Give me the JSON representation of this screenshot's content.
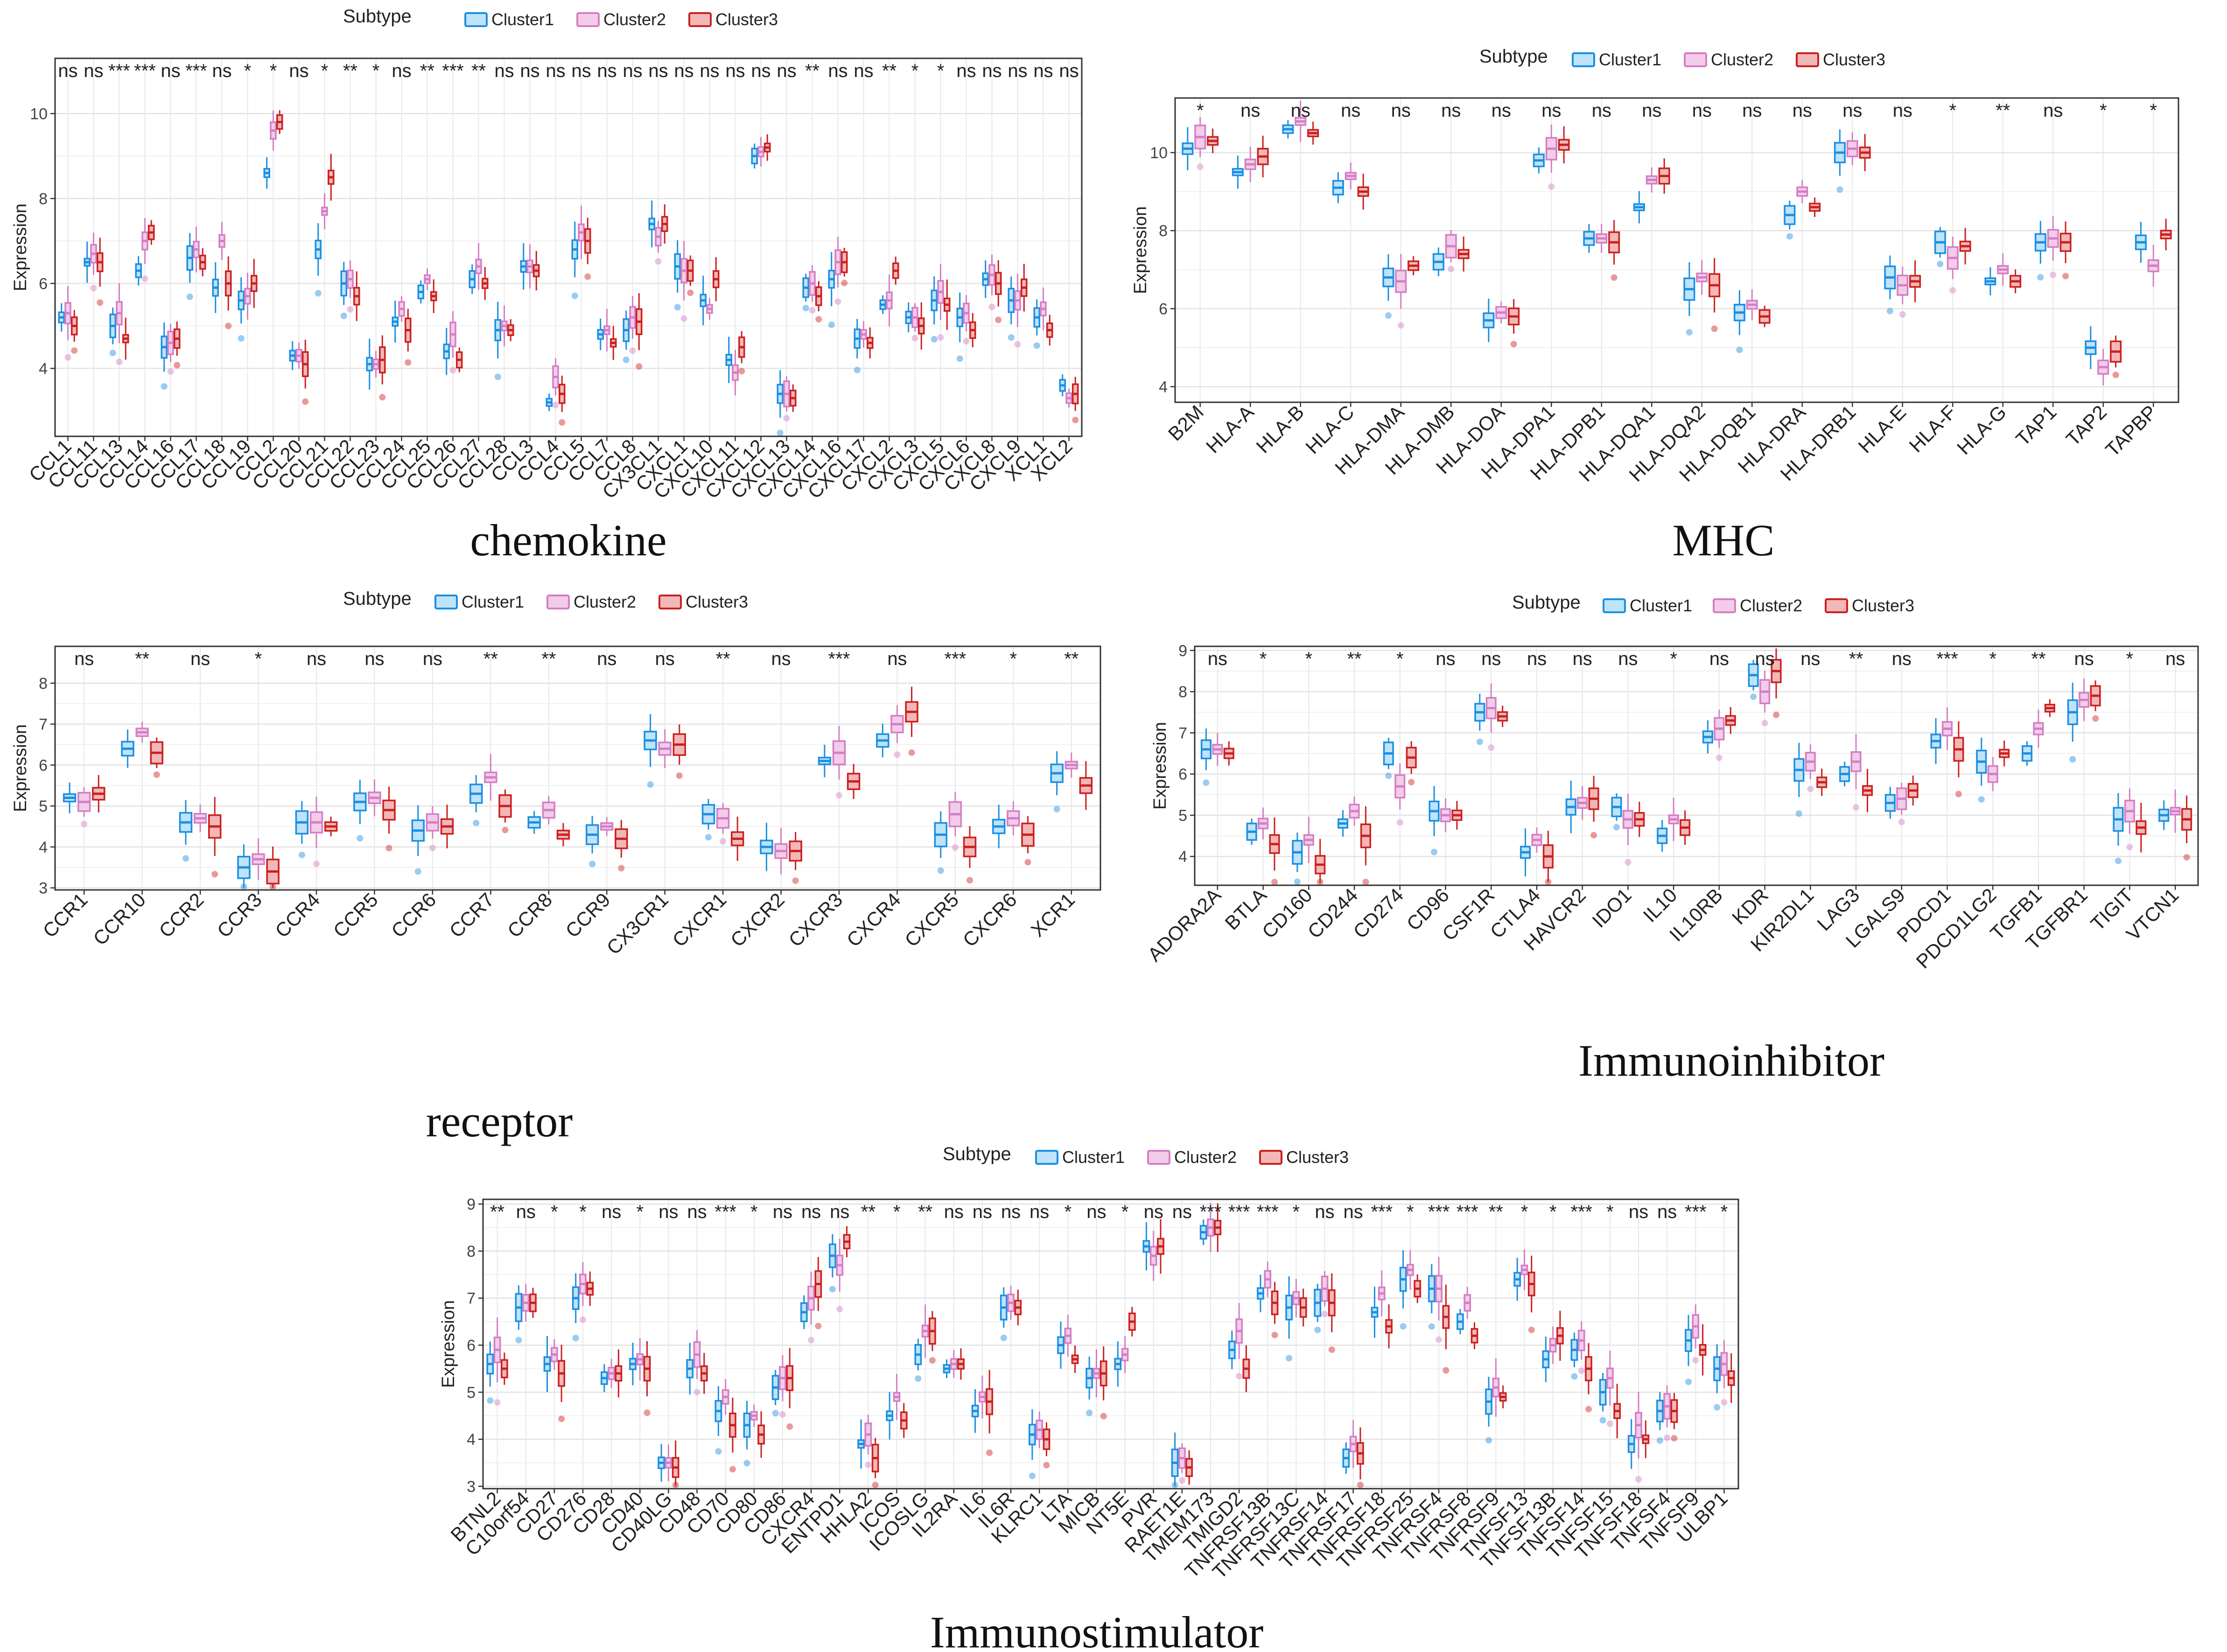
{
  "series_names": [
    "Cluster1",
    "Cluster2",
    "Cluster3"
  ],
  "colors": {
    "Cluster1": {
      "stroke": "#1a8fe3",
      "fill": "#bfe3f9"
    },
    "Cluster2": {
      "stroke": "#d37fc4",
      "fill": "#f3cce9"
    },
    "Cluster3": {
      "stroke": "#cc1f1f",
      "fill": "#f2b8b8"
    }
  },
  "chart_data": [
    {
      "type": "box",
      "title": "chemokine",
      "ylabel": "Expression",
      "legend_title": "Subtype",
      "ylim": [
        2.4,
        11.3
      ],
      "yticks": [
        4,
        6,
        8,
        10
      ],
      "categories": [
        "CCL1",
        "CCL11",
        "CCL13",
        "CCL14",
        "CCL16",
        "CCL17",
        "CCL18",
        "CCL19",
        "CCL2",
        "CCL20",
        "CCL21",
        "CCL22",
        "CCL23",
        "CCL24",
        "CCL25",
        "CCL26",
        "CCL27",
        "CCL28",
        "CCL3",
        "CCL4",
        "CCL5",
        "CCL7",
        "CCL8",
        "CX3CL1",
        "CXCL1",
        "CXCL10",
        "CXCL11",
        "CXCL12",
        "CXCL13",
        "CXCL14",
        "CXCL16",
        "CXCL17",
        "CXCL2",
        "CXCL3",
        "CXCL5",
        "CXCL6",
        "CXCL8",
        "CXCL9",
        "XCL1",
        "XCL2"
      ],
      "significance": [
        "ns",
        "ns",
        "***",
        "***",
        "ns",
        "***",
        "ns",
        "*",
        "*",
        "ns",
        "*",
        "**",
        "*",
        "ns",
        "**",
        "***",
        "**",
        "ns",
        "ns",
        "ns",
        "ns",
        "ns",
        "ns",
        "ns",
        "ns",
        "ns",
        "ns",
        "ns",
        "ns",
        "**",
        "ns",
        "ns",
        "**",
        "*",
        "*",
        "ns",
        "ns",
        "ns",
        "ns",
        "ns"
      ],
      "medians": [
        [
          5.2,
          6.5,
          5.0,
          6.3,
          4.5,
          6.6,
          5.9,
          5.6,
          8.6,
          4.3,
          6.8,
          6.0,
          4.1,
          5.1,
          5.8,
          4.4,
          6.1,
          4.9,
          6.4,
          3.2,
          6.8,
          4.8,
          4.9,
          7.4,
          6.4,
          5.6,
          4.2,
          9.0,
          3.4,
          5.9,
          6.1,
          4.7,
          5.5,
          5.2,
          5.6,
          5.2,
          6.1,
          5.6,
          5.2,
          3.6
        ],
        [
          5.3,
          6.7,
          5.3,
          7.0,
          4.6,
          6.8,
          7.0,
          5.7,
          9.6,
          4.3,
          7.7,
          6.1,
          4.1,
          5.4,
          6.1,
          4.8,
          6.4,
          5.0,
          6.4,
          3.8,
          7.2,
          4.9,
          5.2,
          7.1,
          6.3,
          5.4,
          3.9,
          9.1,
          3.4,
          6.0,
          6.5,
          4.8,
          5.6,
          5.2,
          5.8,
          5.3,
          6.2,
          5.6,
          5.4,
          3.3
        ],
        [
          5.0,
          6.5,
          4.7,
          7.2,
          4.7,
          6.5,
          6.0,
          6.0,
          9.8,
          4.1,
          8.5,
          5.7,
          4.2,
          4.9,
          5.7,
          4.2,
          6.0,
          4.9,
          6.3,
          3.4,
          7.0,
          4.6,
          5.1,
          7.4,
          6.3,
          6.1,
          4.5,
          9.2,
          3.3,
          5.7,
          6.5,
          4.6,
          6.3,
          5.0,
          5.5,
          4.9,
          6.0,
          5.9,
          4.9,
          3.4
        ]
      ]
    },
    {
      "type": "box",
      "title": "MHC",
      "ylabel": "Expression",
      "legend_title": "Subtype",
      "ylim": [
        3.6,
        11.4
      ],
      "yticks": [
        4,
        6,
        8,
        10
      ],
      "categories": [
        "B2M",
        "HLA-A",
        "HLA-B",
        "HLA-C",
        "HLA-DMA",
        "HLA-DMB",
        "HLA-DOA",
        "HLA-DPA1",
        "HLA-DPB1",
        "HLA-DQA1",
        "HLA-DQA2",
        "HLA-DQB1",
        "HLA-DRA",
        "HLA-DRB1",
        "HLA-E",
        "HLA-F",
        "HLA-G",
        "TAP1",
        "TAP2",
        "TAPBP"
      ],
      "significance": [
        "*",
        "ns",
        "ns",
        "ns",
        "ns",
        "ns",
        "ns",
        "ns",
        "ns",
        "ns",
        "ns",
        "ns",
        "ns",
        "ns",
        "ns",
        "*",
        "**",
        "ns",
        "*",
        "*"
      ],
      "medians": [
        [
          10.1,
          9.5,
          10.6,
          9.1,
          6.8,
          7.2,
          5.7,
          9.8,
          7.8,
          8.6,
          6.5,
          5.9,
          8.4,
          10.0,
          6.8,
          7.7,
          6.7,
          7.7,
          5.0,
          7.7
        ],
        [
          10.4,
          9.7,
          10.8,
          9.4,
          6.7,
          7.6,
          5.9,
          10.1,
          7.8,
          9.3,
          6.8,
          6.1,
          9.0,
          10.1,
          6.6,
          7.3,
          7.0,
          7.8,
          4.5,
          7.1
        ],
        [
          10.3,
          9.9,
          10.5,
          9.0,
          7.1,
          7.4,
          5.8,
          10.2,
          7.7,
          9.4,
          6.6,
          5.8,
          8.6,
          10.0,
          6.7,
          7.6,
          6.7,
          7.7,
          4.9,
          7.9
        ]
      ]
    },
    {
      "type": "box",
      "title": "receptor",
      "ylabel": "Expression",
      "legend_title": "Subtype",
      "ylim": [
        2.95,
        8.9
      ],
      "yticks": [
        3,
        4,
        5,
        6,
        7,
        8
      ],
      "categories": [
        "CCR1",
        "CCR10",
        "CCR2",
        "CCR3",
        "CCR4",
        "CCR5",
        "CCR6",
        "CCR7",
        "CCR8",
        "CCR9",
        "CX3CR1",
        "CXCR1",
        "CXCR2",
        "CXCR3",
        "CXCR4",
        "CXCR5",
        "CXCR6",
        "XCR1"
      ],
      "significance": [
        "ns",
        "**",
        "ns",
        "*",
        "ns",
        "ns",
        "ns",
        "**",
        "**",
        "ns",
        "ns",
        "**",
        "ns",
        "***",
        "ns",
        "***",
        "*",
        "**"
      ],
      "medians": [
        [
          5.2,
          6.4,
          4.6,
          3.5,
          4.6,
          5.1,
          4.4,
          5.3,
          4.6,
          4.3,
          6.6,
          4.8,
          4.0,
          6.1,
          6.6,
          4.3,
          4.5,
          5.8
        ],
        [
          5.1,
          6.8,
          4.7,
          3.7,
          4.6,
          5.2,
          4.6,
          5.7,
          4.9,
          4.5,
          6.4,
          4.7,
          3.9,
          6.3,
          7.0,
          4.8,
          4.7,
          6.0
        ],
        [
          5.3,
          6.3,
          4.5,
          3.4,
          4.5,
          4.9,
          4.5,
          5.0,
          4.3,
          4.2,
          6.5,
          4.2,
          3.9,
          5.6,
          7.3,
          4.0,
          4.3,
          5.5
        ]
      ]
    },
    {
      "type": "box",
      "title": "Immunoinhibitor",
      "ylabel": "Expression",
      "legend_title": "Subtype",
      "ylim": [
        3.3,
        9.1
      ],
      "yticks": [
        4,
        5,
        6,
        7,
        8,
        9
      ],
      "categories": [
        "ADORA2A",
        "BTLA",
        "CD160",
        "CD244",
        "CD274",
        "CD96",
        "CSF1R",
        "CTLA4",
        "HAVCR2",
        "IDO1",
        "IL10",
        "IL10RB",
        "KDR",
        "KIR2DL1",
        "LAG3",
        "LGALS9",
        "PDCD1",
        "PDCD1LG2",
        "TGFB1",
        "TGFBR1",
        "TIGIT",
        "VTCN1"
      ],
      "significance": [
        "ns",
        "*",
        "*",
        "**",
        "*",
        "ns",
        "ns",
        "ns",
        "ns",
        "ns",
        "*",
        "ns",
        "ns",
        "ns",
        "**",
        "ns",
        "***",
        "*",
        "**",
        "ns",
        "*",
        "ns"
      ],
      "medians": [
        [
          6.6,
          4.6,
          4.1,
          4.8,
          6.5,
          5.1,
          7.5,
          4.1,
          5.2,
          5.2,
          4.5,
          6.9,
          8.4,
          6.1,
          6.0,
          5.3,
          6.8,
          6.3,
          6.5,
          7.5,
          4.9,
          5.0
        ],
        [
          6.6,
          4.8,
          4.4,
          5.1,
          5.7,
          5.0,
          7.6,
          4.4,
          5.3,
          4.9,
          4.9,
          7.1,
          8.0,
          6.3,
          6.3,
          5.4,
          7.1,
          6.0,
          7.1,
          7.8,
          5.1,
          5.1
        ],
        [
          6.5,
          4.3,
          3.8,
          4.5,
          6.4,
          5.0,
          7.4,
          4.0,
          5.4,
          4.9,
          4.7,
          7.3,
          8.5,
          5.8,
          5.6,
          5.6,
          6.6,
          6.5,
          7.6,
          7.9,
          4.7,
          4.9
        ]
      ]
    },
    {
      "type": "box",
      "title": "Immunostimulator",
      "ylabel": "Expression",
      "legend_title": "Subtype",
      "ylim": [
        2.95,
        9.1
      ],
      "yticks": [
        3,
        4,
        5,
        6,
        7,
        8,
        9
      ],
      "categories": [
        "BTNL2",
        "C10orf54",
        "CD27",
        "CD276",
        "CD28",
        "CD40",
        "CD40LG",
        "CD48",
        "CD70",
        "CD80",
        "CD86",
        "CXCR4",
        "ENTPD1",
        "HHLA2",
        "ICOS",
        "ICOSLG",
        "IL2RA",
        "IL6",
        "IL6R",
        "KLRC1",
        "LTA",
        "MICB",
        "NT5E",
        "PVR",
        "RAET1E",
        "TMEM173",
        "TMIGD2",
        "TNFRSF13B",
        "TNFRSF13C",
        "TNFRSF14",
        "TNFRSF17",
        "TNFRSF18",
        "TNFRSF25",
        "TNFRSF4",
        "TNFRSF8",
        "TNFRSF9",
        "TNFSF13",
        "TNFSF13B",
        "TNFSF14",
        "TNFSF15",
        "TNFSF18",
        "TNFSF4",
        "TNFSF9",
        "ULBP1"
      ],
      "significance": [
        "**",
        "ns",
        "*",
        "*",
        "ns",
        "*",
        "ns",
        "ns",
        "***",
        "*",
        "ns",
        "ns",
        "ns",
        "**",
        "*",
        "**",
        "ns",
        "ns",
        "ns",
        "ns",
        "*",
        "ns",
        "*",
        "ns",
        "ns",
        "***",
        "***",
        "***",
        "*",
        "ns",
        "ns",
        "***",
        "*",
        "***",
        "***",
        "**",
        "*",
        "*",
        "***",
        "*",
        "ns",
        "ns",
        "***",
        "*"
      ],
      "medians": [
        [
          5.6,
          6.8,
          5.6,
          7.0,
          5.3,
          5.6,
          3.5,
          5.5,
          4.6,
          4.3,
          5.1,
          6.7,
          7.9,
          3.9,
          4.5,
          5.8,
          5.5,
          4.6,
          6.8,
          4.1,
          6.0,
          5.3,
          5.6,
          8.1,
          3.5,
          8.4,
          5.9,
          7.1,
          6.8,
          6.9,
          3.6,
          6.7,
          7.4,
          7.2,
          6.5,
          4.8,
          7.4,
          5.7,
          5.9,
          5.0,
          3.9,
          4.6,
          6.1,
          5.5
        ],
        [
          5.9,
          6.9,
          5.8,
          7.3,
          5.4,
          5.7,
          3.5,
          5.8,
          4.9,
          4.5,
          5.3,
          7.0,
          7.7,
          4.1,
          4.9,
          6.3,
          5.6,
          4.9,
          6.9,
          4.2,
          6.2,
          5.4,
          5.8,
          7.9,
          3.6,
          8.5,
          6.3,
          7.4,
          7.0,
          7.2,
          3.9,
          7.1,
          7.6,
          7.2,
          6.9,
          5.1,
          7.6,
          6.0,
          6.1,
          5.3,
          4.3,
          4.7,
          6.4,
          5.6
        ],
        [
          5.5,
          6.9,
          5.4,
          7.2,
          5.4,
          5.5,
          3.4,
          5.4,
          4.3,
          4.1,
          5.3,
          7.3,
          8.2,
          3.6,
          4.4,
          6.3,
          5.6,
          4.8,
          6.8,
          4.0,
          5.7,
          5.4,
          6.5,
          8.1,
          3.4,
          8.5,
          5.5,
          6.9,
          6.8,
          6.9,
          3.7,
          6.4,
          7.2,
          6.6,
          6.2,
          4.9,
          7.3,
          6.2,
          5.5,
          4.6,
          4.0,
          4.6,
          5.9,
          5.3
        ]
      ]
    }
  ]
}
